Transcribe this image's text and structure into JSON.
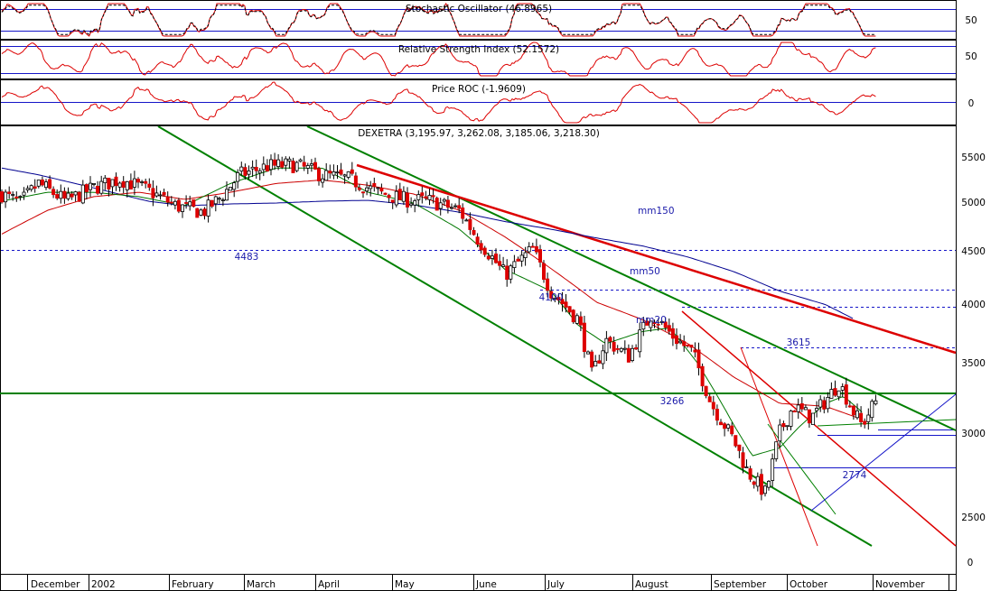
{
  "chart_data": {
    "type": "candlestick",
    "instrument_label": "DEXETRA (3,195.97, 3,262.08, 3,185.06, 3,218.30)",
    "ohlc_last": {
      "open": 3195.97,
      "high": 3262.08,
      "low": 3185.06,
      "close": 3218.3
    },
    "months": [
      "December",
      "2002",
      "February",
      "March",
      "April",
      "May",
      "June",
      "July",
      "August",
      "September",
      "October",
      "November"
    ],
    "price_axis": {
      "ticks": [
        2500,
        3000,
        3500,
        4000,
        4500,
        5000,
        5500
      ],
      "extra_tick": "0",
      "scale": "log"
    },
    "indicators": [
      {
        "label": "Stochastic Oscillator (46.8965)",
        "ticks": [
          "50"
        ],
        "ref_lines": [
          80,
          20
        ]
      },
      {
        "label": "Relative Strength Index (52.1572)",
        "ticks": [
          "50"
        ],
        "ref_lines": [
          70,
          30
        ]
      },
      {
        "label": "Price ROC (-1.9609)",
        "ticks": [
          "0"
        ],
        "ref_lines": [
          0
        ]
      }
    ],
    "levels": [
      {
        "label": "4483",
        "value": 4483
      },
      {
        "label": "4100",
        "value": 4100
      },
      {
        "label": "3615",
        "value": 3615
      },
      {
        "label": "3266",
        "value": 3266
      },
      {
        "label": "2774",
        "value": 2774
      }
    ],
    "moving_averages": [
      "mm150",
      "mm50",
      "mm20"
    ],
    "series_approx": {
      "price_keypoints": [
        [
          0,
          5080
        ],
        [
          0.02,
          4980
        ],
        [
          0.04,
          5200
        ],
        [
          0.07,
          5000
        ],
        [
          0.1,
          5150
        ],
        [
          0.13,
          5250
        ],
        [
          0.16,
          5120
        ],
        [
          0.19,
          4950
        ],
        [
          0.22,
          4880
        ],
        [
          0.24,
          5050
        ],
        [
          0.26,
          5300
        ],
        [
          0.29,
          5400
        ],
        [
          0.32,
          5420
        ],
        [
          0.35,
          5300
        ],
        [
          0.38,
          5250
        ],
        [
          0.41,
          5100
        ],
        [
          0.44,
          5020
        ],
        [
          0.47,
          5000
        ],
        [
          0.5,
          4900
        ],
        [
          0.52,
          4600
        ],
        [
          0.55,
          4250
        ],
        [
          0.58,
          4500
        ],
        [
          0.6,
          4100
        ],
        [
          0.63,
          3850
        ],
        [
          0.645,
          3400
        ],
        [
          0.66,
          3680
        ],
        [
          0.685,
          3550
        ],
        [
          0.71,
          3900
        ],
        [
          0.735,
          3700
        ],
        [
          0.755,
          3580
        ],
        [
          0.775,
          3200
        ],
        [
          0.8,
          2950
        ],
        [
          0.815,
          2750
        ],
        [
          0.835,
          2620
        ],
        [
          0.85,
          3000
        ],
        [
          0.865,
          3180
        ],
        [
          0.885,
          3100
        ],
        [
          0.905,
          3260
        ],
        [
          0.915,
          3350
        ],
        [
          0.93,
          3150
        ],
        [
          0.94,
          3050
        ],
        [
          0.955,
          3218
        ]
      ],
      "mm150_keypoints": [
        [
          0,
          5380
        ],
        [
          0.04,
          5300
        ],
        [
          0.08,
          5200
        ],
        [
          0.12,
          5100
        ],
        [
          0.16,
          5000
        ],
        [
          0.2,
          4950
        ],
        [
          0.25,
          4970
        ],
        [
          0.3,
          4980
        ],
        [
          0.35,
          5000
        ],
        [
          0.4,
          5010
        ],
        [
          0.45,
          4960
        ],
        [
          0.5,
          4880
        ],
        [
          0.55,
          4780
        ],
        [
          0.6,
          4700
        ],
        [
          0.65,
          4610
        ],
        [
          0.7,
          4530
        ],
        [
          0.75,
          4420
        ],
        [
          0.8,
          4280
        ],
        [
          0.85,
          4100
        ],
        [
          0.9,
          3980
        ],
        [
          0.93,
          3860
        ]
      ],
      "mm50_keypoints": [
        [
          0,
          4650
        ],
        [
          0.05,
          4900
        ],
        [
          0.1,
          5050
        ],
        [
          0.15,
          5100
        ],
        [
          0.2,
          5020
        ],
        [
          0.25,
          5100
        ],
        [
          0.3,
          5200
        ],
        [
          0.35,
          5240
        ],
        [
          0.4,
          5180
        ],
        [
          0.45,
          5080
        ],
        [
          0.5,
          4900
        ],
        [
          0.55,
          4620
        ],
        [
          0.6,
          4310
        ],
        [
          0.65,
          4000
        ],
        [
          0.7,
          3850
        ],
        [
          0.75,
          3650
        ],
        [
          0.8,
          3390
        ],
        [
          0.85,
          3200
        ],
        [
          0.9,
          3180
        ],
        [
          0.935,
          3100
        ]
      ],
      "mm20_keypoints": [
        [
          0,
          5000
        ],
        [
          0.05,
          5100
        ],
        [
          0.1,
          5100
        ],
        [
          0.15,
          5050
        ],
        [
          0.2,
          4950
        ],
        [
          0.25,
          5200
        ],
        [
          0.3,
          5380
        ],
        [
          0.35,
          5380
        ],
        [
          0.4,
          5100
        ],
        [
          0.45,
          4980
        ],
        [
          0.5,
          4700
        ],
        [
          0.55,
          4300
        ],
        [
          0.6,
          4100
        ],
        [
          0.63,
          3800
        ],
        [
          0.66,
          3650
        ],
        [
          0.7,
          3750
        ],
        [
          0.73,
          3780
        ],
        [
          0.76,
          3500
        ],
        [
          0.8,
          3050
        ],
        [
          0.82,
          2850
        ],
        [
          0.85,
          2900
        ],
        [
          0.87,
          3030
        ],
        [
          0.9,
          3200
        ],
        [
          0.92,
          3250
        ],
        [
          0.94,
          3140
        ]
      ]
    }
  },
  "colors": {
    "up": "#ffffff",
    "down": "#dd0000",
    "wick": "#000000",
    "mm150": "#000090",
    "mm50": "#cc0000",
    "mm20": "#007700",
    "trend_green": "#008000",
    "trend_red": "#dd0000",
    "blue_line": "#1515c8",
    "annotation": "#1a1aaa"
  }
}
